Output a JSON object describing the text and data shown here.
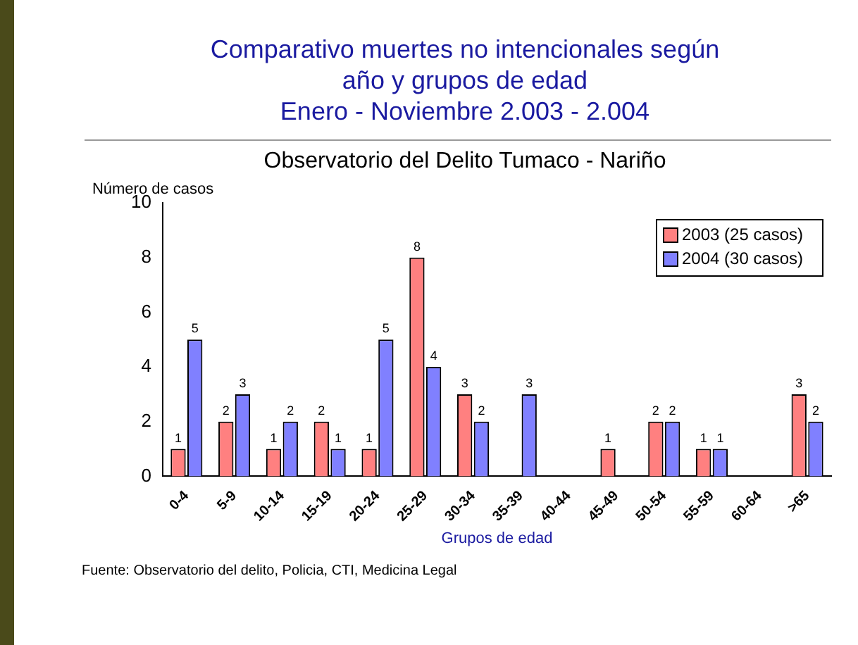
{
  "chart_data": {
    "type": "bar",
    "title": "Comparativo  muertes no intencionales según\naño y grupos de edad\nEnero - Noviembre 2.003 - 2.004",
    "subtitle": "Observatorio del Delito Tumaco - Nariño",
    "ylabel": "Número de casos",
    "xlabel": "Grupos de edad",
    "annotations": [
      "Fuente: Observatorio del delito, Policia, CTI, Medicina Legal"
    ],
    "categories": [
      "0-4",
      "5-9",
      "10-14",
      "15-19",
      "20-24",
      "25-29",
      "30-34",
      "35-39",
      "40-44",
      "45-49",
      "50-54",
      "55-59",
      "60-64",
      ">65"
    ],
    "series": [
      {
        "name": "2003 (25 casos)",
        "color": "#ff8080",
        "values": [
          1,
          2,
          1,
          2,
          1,
          8,
          3,
          null,
          null,
          1,
          2,
          1,
          null,
          3
        ]
      },
      {
        "name": "2004 (30 casos)",
        "color": "#8080ff",
        "values": [
          5,
          3,
          2,
          1,
          5,
          4,
          2,
          3,
          null,
          null,
          2,
          1,
          null,
          2
        ]
      }
    ],
    "ylim": [
      0,
      10
    ],
    "yticks": [
      0,
      2,
      4,
      6,
      8,
      10
    ],
    "grid": false,
    "legend": "top right",
    "data_labels": true
  }
}
